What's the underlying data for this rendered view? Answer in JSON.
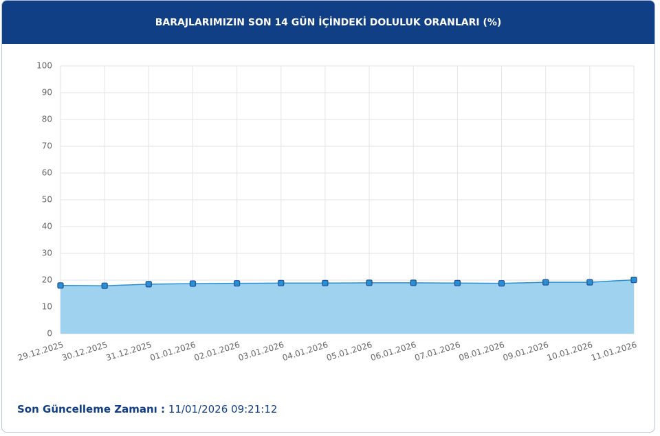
{
  "chart_data": {
    "type": "area",
    "title": "BARAJLARIMIZIN SON 14 GÜN İÇİNDEKİ DOLULUK ORANLARI (%)",
    "x": [
      "29.12.2025",
      "30.12.2025",
      "31.12.2025",
      "01.01.2026",
      "02.01.2026",
      "03.01.2026",
      "04.01.2026",
      "05.01.2026",
      "06.01.2026",
      "07.01.2026",
      "08.01.2026",
      "09.01.2026",
      "10.01.2026",
      "11.01.2026"
    ],
    "values": [
      18.0,
      17.9,
      18.5,
      18.7,
      18.8,
      18.9,
      18.9,
      19.0,
      19.0,
      18.9,
      18.8,
      19.2,
      19.2,
      20.1
    ],
    "color": "#2a8fd0",
    "fill_color": "#9fd2ef",
    "marker_color": "#1f4f99",
    "ylim": [
      0,
      100
    ],
    "yticks": [
      0,
      10,
      20,
      30,
      40,
      50,
      60,
      70,
      80,
      90,
      100
    ],
    "grid": true,
    "footer_label": "Son Güncelleme Zamanı :",
    "footer_value": "11/01/2026 09:21:12"
  }
}
